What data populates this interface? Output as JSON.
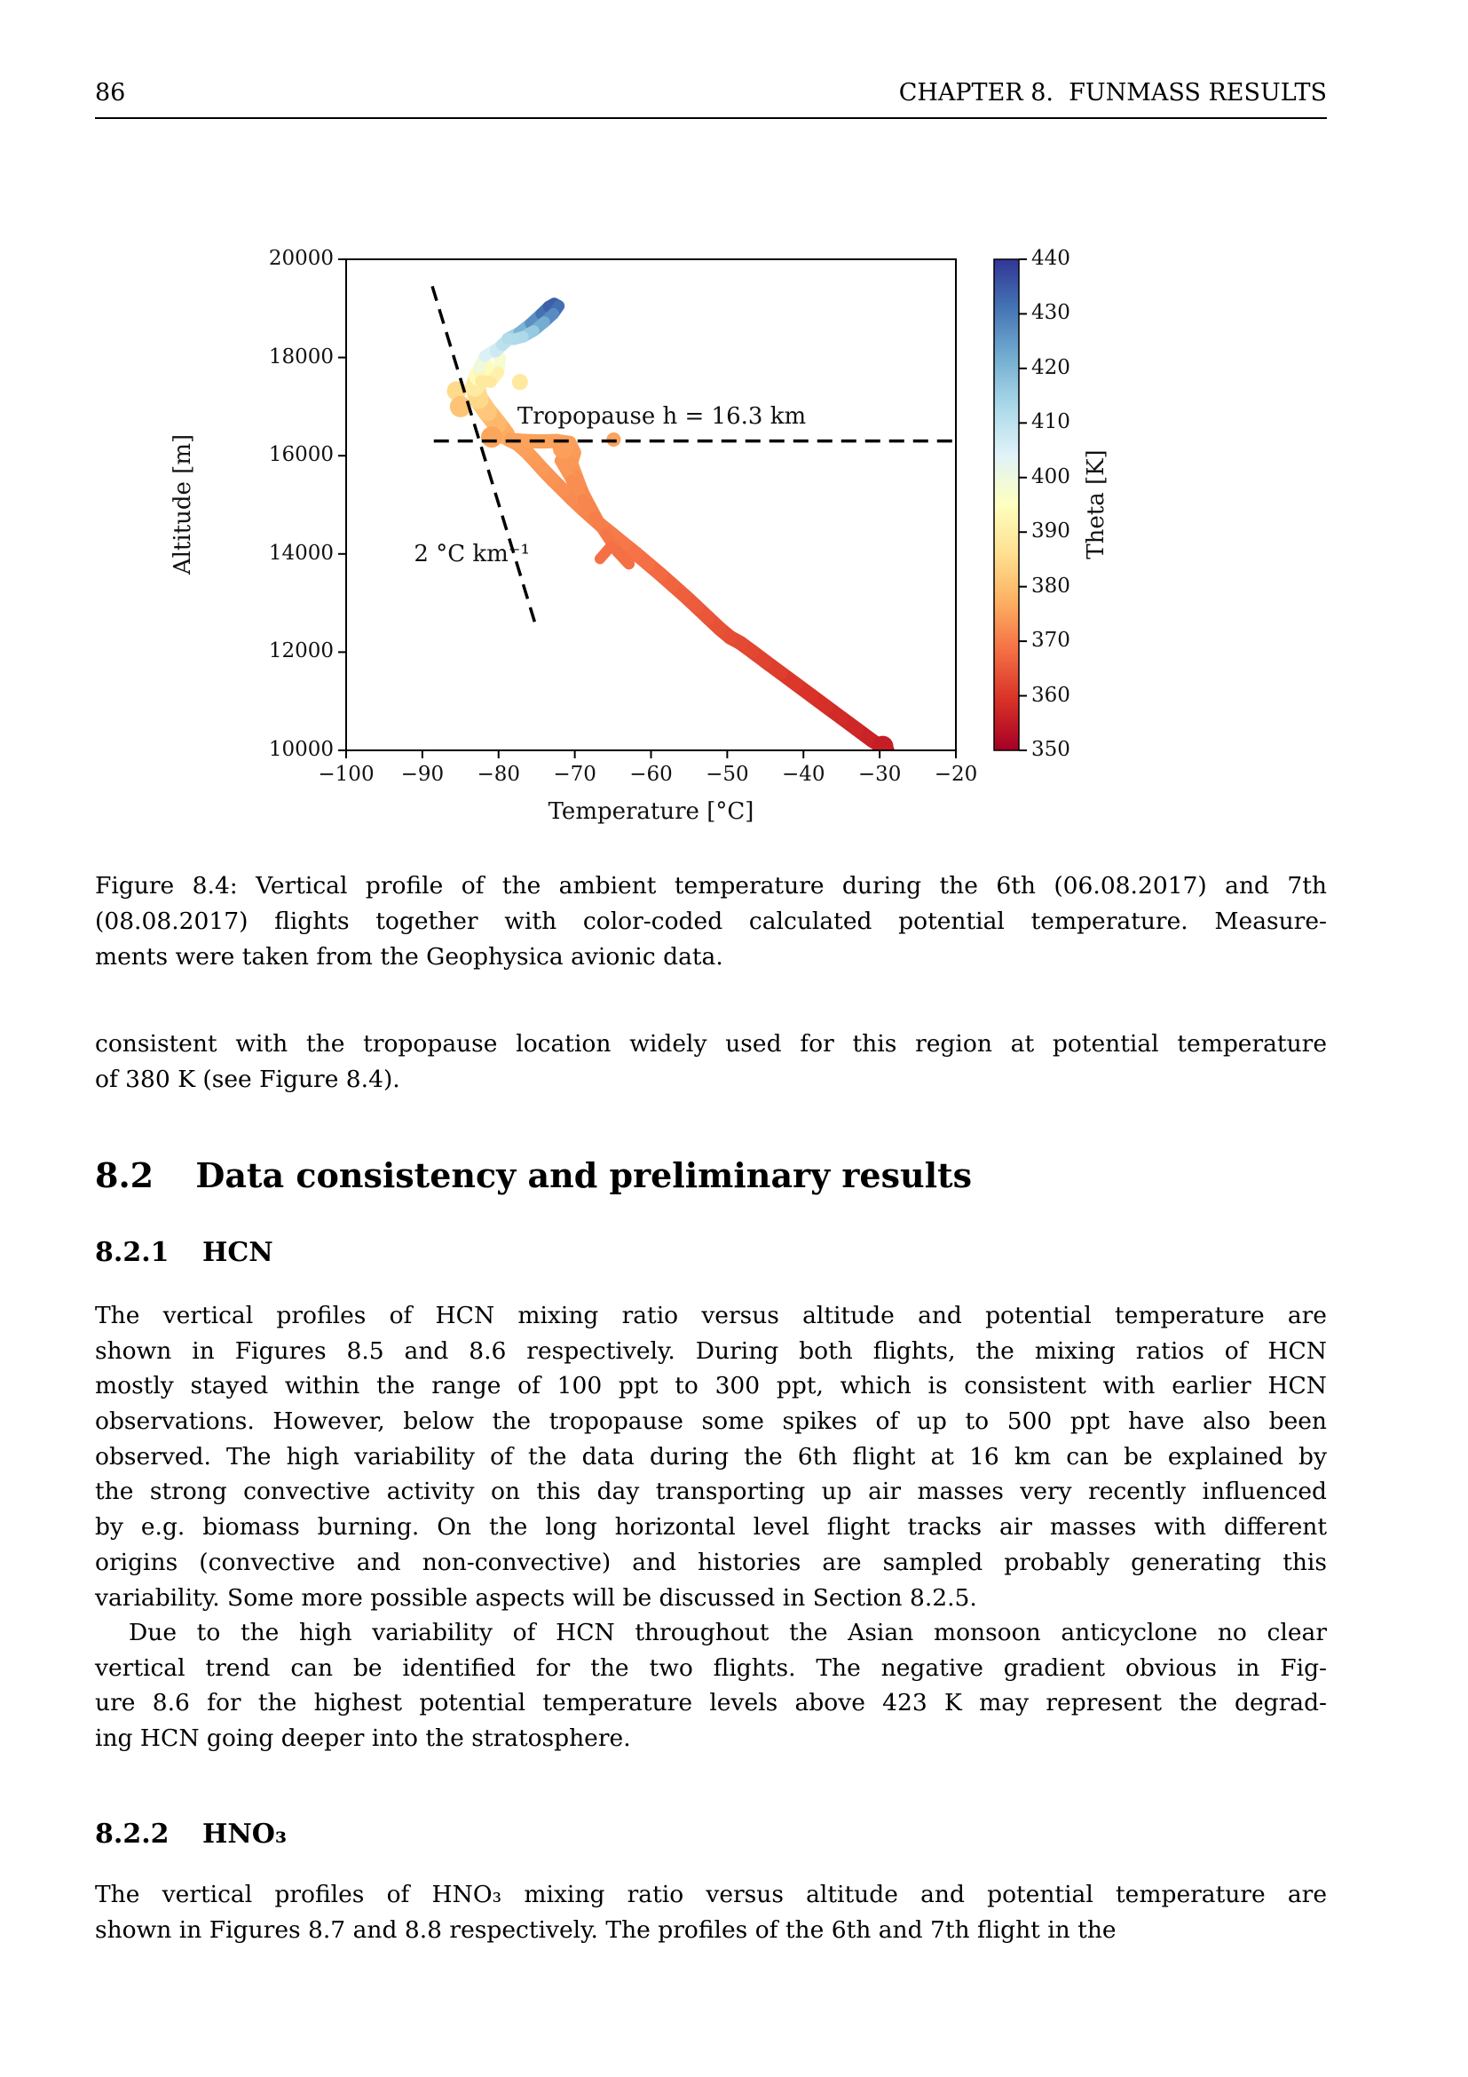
{
  "page": {
    "header": {
      "page_number": "86",
      "chapter_title": "CHAPTER 8.  FUNMASS RESULTS"
    },
    "figure": {
      "caption_lines": [
        "Figure 8.4:  Vertical profile of the ambient temperature during the 6th (06.08.2017) and 7th",
        "(08.08.2017) flights together with color-coded calculated potential temperature.  Measure-",
        "ments were taken from the Geophysica avionic data."
      ]
    },
    "sections": {
      "s82_number": "8.2",
      "s82_title": "Data consistency and preliminary results",
      "s821_number": "8.2.1",
      "s821_title": "HCN",
      "s822_number": "8.2.2",
      "s822_title": "HNO₃"
    },
    "paragraphs": {
      "intro_lines": [
        "consistent with the tropopause location widely used for this region at potential temperature",
        "of 380 K (see Figure 8.4)."
      ],
      "hcn_p1_lines": [
        "The vertical profiles of HCN mixing ratio versus altitude and potential temperature are",
        "shown in Figures 8.5 and 8.6 respectively.  During both flights, the mixing ratios of HCN",
        "mostly stayed within the range of 100 ppt to 300 ppt, which is consistent with earlier HCN",
        "observations.  However, below the tropopause some spikes of up to 500 ppt have also been",
        "observed. The high variability of the data during the 6th flight at 16 km can be explained by",
        "the strong convective activity on this day transporting up air masses very recently influenced",
        "by e.g.  biomass burning.  On the long horizontal level flight tracks air masses with different",
        "origins (convective and non-convective) and histories are sampled probably generating this",
        "variability.  Some more possible aspects will be discussed in Section 8.2.5."
      ],
      "hcn_p2_lines": [
        "Due to the high variability of HCN throughout the Asian monsoon anticyclone no clear",
        "vertical trend can be identified for the two flights.  The negative gradient obvious in Fig-",
        "ure 8.6 for the highest potential temperature levels above 423 K may represent the degrad-",
        "ing HCN going deeper into the stratosphere."
      ],
      "hno3_p1_lines": [
        "The vertical profiles of HNO₃ mixing ratio versus altitude and potential temperature are",
        "shown in Figures 8.7 and 8.8 respectively.  The profiles of the 6th and 7th flight in the"
      ]
    }
  },
  "chart_data": {
    "type": "scatter",
    "title": "",
    "xlabel": "Temperature [°C]",
    "ylabel": "Altitude [m]",
    "xlim": [
      -100,
      -20
    ],
    "ylim": [
      10000,
      20000
    ],
    "xticks": [
      -100,
      -90,
      -80,
      -70,
      -60,
      -50,
      -40,
      -30,
      -20
    ],
    "xtick_labels": [
      "−100",
      "−90",
      "−80",
      "−70",
      "−60",
      "−50",
      "−40",
      "−30",
      "−20"
    ],
    "yticks": [
      10000,
      12000,
      14000,
      16000,
      18000,
      20000
    ],
    "ytick_labels": [
      "10000",
      "12000",
      "14000",
      "16000",
      "18000",
      "20000"
    ],
    "grid": false,
    "colorbar": {
      "label": "Theta [K]",
      "min": 350,
      "max": 440,
      "ticks": [
        350,
        360,
        370,
        380,
        390,
        400,
        410,
        420,
        430,
        440
      ],
      "tick_labels": [
        "350",
        "360",
        "370",
        "380",
        "390",
        "400",
        "410",
        "420",
        "430",
        "440"
      ],
      "colormap_name": "RdYlBu",
      "colors": [
        "#a50026",
        "#d73027",
        "#f46d43",
        "#fdae61",
        "#fee090",
        "#ffffbf",
        "#e0f3f8",
        "#abd9e9",
        "#74add1",
        "#4575b4",
        "#313695"
      ]
    },
    "annotations": [
      {
        "name": "tropopause-annotation",
        "text": "Tropopause h = 16.3 km",
        "x": -58.6,
        "y": 16420,
        "va": "bottom"
      },
      {
        "name": "lapse-rate-annotation",
        "text": "2 °C km⁻¹",
        "x": -83.5,
        "y": 13940,
        "va": "center"
      }
    ],
    "lines": [
      {
        "name": "tropopause-line",
        "style": "dashed",
        "points": [
          [
            -88.5,
            16300
          ],
          [
            -20,
            16300
          ]
        ]
      },
      {
        "name": "lapse-rate-line",
        "style": "dashed",
        "points": [
          [
            -88.7,
            19450
          ],
          [
            -75.0,
            12480
          ]
        ]
      }
    ],
    "series": [
      {
        "name": "flight-profile-main",
        "width": 16,
        "points": [
          [
            -29,
            10000,
            355.5
          ],
          [
            -31,
            10200,
            356
          ],
          [
            -33,
            10430,
            356.9
          ],
          [
            -35,
            10660,
            357.6
          ],
          [
            -37,
            10890,
            358.4
          ],
          [
            -39,
            11120,
            359.1
          ],
          [
            -41,
            11350,
            359.9
          ],
          [
            -43,
            11580,
            360.6
          ],
          [
            -45,
            11810,
            361.4
          ],
          [
            -46.8,
            12020,
            362.1
          ],
          [
            -48.3,
            12190,
            362.6
          ],
          [
            -49.6,
            12300,
            363
          ],
          [
            -51,
            12480,
            363.6
          ],
          [
            -52.5,
            12700,
            364.3
          ],
          [
            -54,
            12920,
            365
          ],
          [
            -55.6,
            13150,
            365.8
          ],
          [
            -57.2,
            13370,
            366.5
          ],
          [
            -58.8,
            13590,
            367.2
          ],
          [
            -60.4,
            13800,
            367.9
          ],
          [
            -62,
            14010,
            368.6
          ],
          [
            -63.6,
            14210,
            369.2
          ],
          [
            -65.1,
            14400,
            369.8
          ],
          [
            -66.4,
            14560,
            370.3
          ],
          [
            -67.7,
            14740,
            370.8
          ],
          [
            -69,
            14920,
            371.4
          ],
          [
            -70.3,
            15110,
            371.9
          ],
          [
            -71.6,
            15310,
            372.5
          ],
          [
            -72.9,
            15510,
            373.1
          ],
          [
            -74.2,
            15720,
            373.7
          ],
          [
            -75.3,
            15910,
            374.2
          ],
          [
            -76.4,
            16090,
            374.7
          ],
          [
            -77.5,
            16240,
            375.1
          ],
          [
            -78.7,
            16330,
            375.4
          ]
        ]
      },
      {
        "name": "flight-profile-upper",
        "width": 22,
        "points": [
          [
            -79.1,
            16420,
            376
          ],
          [
            -80.2,
            16650,
            377.7
          ],
          [
            -81.5,
            16900,
            380
          ],
          [
            -82.6,
            17150,
            383
          ],
          [
            -83.1,
            17400,
            386.5
          ],
          [
            -82.6,
            17620,
            391.5
          ],
          [
            -81.9,
            17800,
            397
          ]
        ]
      },
      {
        "name": "flight-profile-right-strand",
        "width": 16,
        "points": [
          [
            -78.4,
            16320,
            375.4
          ],
          [
            -76.4,
            16300,
            375.3
          ],
          [
            -74.4,
            16290,
            375.3
          ],
          [
            -72.4,
            16300,
            375.3
          ],
          [
            -70.7,
            16260,
            375.1
          ],
          [
            -70.1,
            16060,
            374.6
          ],
          [
            -70.5,
            15850,
            374.1
          ],
          [
            -69.8,
            15550,
            373.2
          ],
          [
            -69,
            15230,
            372.3
          ],
          [
            -68.1,
            14960,
            371.5
          ],
          [
            -67.2,
            14700,
            370.7
          ]
        ]
      },
      {
        "name": "flight-profile-secondary-strand",
        "width": 13,
        "points": [
          [
            -71.9,
            15900,
            374.2
          ],
          [
            -70.4,
            15500,
            373.1
          ],
          [
            -68.9,
            15100,
            371.9
          ],
          [
            -67.4,
            14750,
            370.9
          ],
          [
            -65.9,
            14400,
            369.8
          ],
          [
            -64.4,
            14050,
            368.7
          ],
          [
            -62.9,
            13800,
            367.9
          ]
        ]
      },
      {
        "name": "flight-profile-spur",
        "width": 12,
        "points": [
          [
            -65.3,
            14150,
            369
          ],
          [
            -66.7,
            13900,
            368.2
          ]
        ]
      },
      {
        "name": "loop-pale",
        "width": 13,
        "points": [
          [
            -82.3,
            17520,
            389
          ],
          [
            -82.6,
            17790,
            396
          ],
          [
            -81.8,
            18030,
            403
          ],
          [
            -80.6,
            18150,
            406.3
          ],
          [
            -79.8,
            17990,
            401.8
          ],
          [
            -80,
            17700,
            393.5
          ],
          [
            -81,
            17500,
            388.4
          ],
          [
            -82.3,
            17520,
            389
          ]
        ]
      },
      {
        "name": "loop-connector",
        "width": 14,
        "points": [
          [
            -80.4,
            18130,
            405.8
          ],
          [
            -79.5,
            18260,
            408.8
          ],
          [
            -78.7,
            18370,
            411.8
          ]
        ]
      },
      {
        "name": "loop-blue",
        "width": 13,
        "points": [
          [
            -78.8,
            18390,
            412.3
          ],
          [
            -77.3,
            18510,
            417.8
          ],
          [
            -75.8,
            18690,
            423.8
          ],
          [
            -74.4,
            18890,
            429.8
          ],
          [
            -73.4,
            19040,
            433.3
          ],
          [
            -72.7,
            19100,
            435
          ],
          [
            -72.1,
            19050,
            433.5
          ],
          [
            -72.8,
            18890,
            429.8
          ],
          [
            -74,
            18720,
            424.9
          ],
          [
            -75.4,
            18540,
            418.9
          ],
          [
            -76.8,
            18420,
            413.5
          ],
          [
            -78,
            18370,
            411.9
          ],
          [
            -78.8,
            18390,
            412.3
          ]
        ]
      }
    ],
    "blobs": [
      {
        "t": -85.5,
        "alt": 17320,
        "theta": 385,
        "r": 11
      },
      {
        "t": -85.0,
        "alt": 17000,
        "theta": 381,
        "r": 12
      },
      {
        "t": -77.2,
        "alt": 17500,
        "theta": 388.5,
        "r": 9
      },
      {
        "t": -80.9,
        "alt": 16380,
        "theta": 375.7,
        "r": 12
      },
      {
        "t": -71.5,
        "alt": 16150,
        "theta": 374.9,
        "r": 12
      },
      {
        "t": -29.6,
        "alt": 10080,
        "theta": 355.7,
        "r": 12
      },
      {
        "t": -64.9,
        "alt": 16330,
        "theta": 375.4,
        "r": 8
      }
    ]
  }
}
